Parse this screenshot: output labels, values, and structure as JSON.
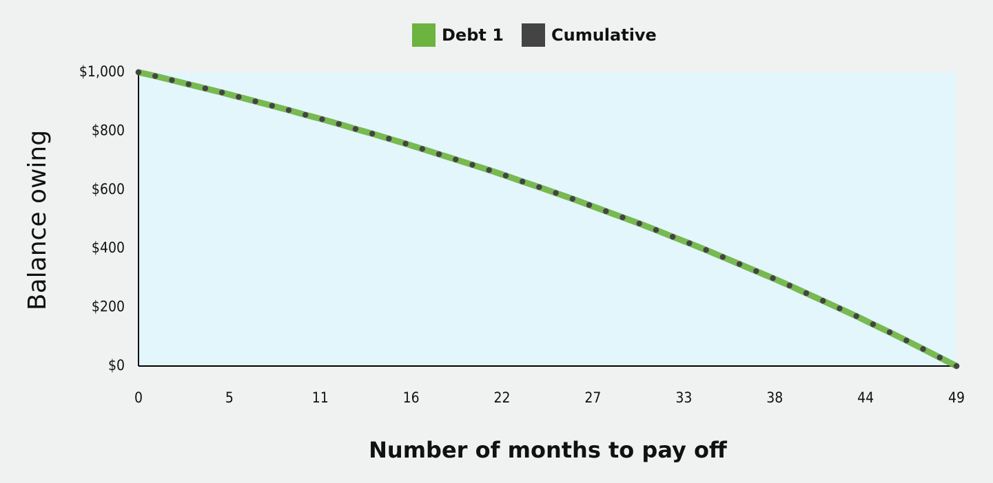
{
  "chart_data": {
    "type": "line",
    "x_label": "Number of months to pay off",
    "y_label": "Balance owing",
    "x": [
      0,
      1,
      2,
      3,
      4,
      5,
      6,
      7,
      8,
      9,
      10,
      11,
      12,
      13,
      14,
      15,
      16,
      17,
      18,
      19,
      20,
      21,
      22,
      23,
      24,
      25,
      26,
      27,
      28,
      29,
      30,
      31,
      32,
      33,
      34,
      35,
      36,
      37,
      38,
      39,
      40,
      41,
      42,
      43,
      44,
      45,
      46,
      47,
      48,
      49
    ],
    "series": [
      {
        "name": "Debt 1",
        "color": "#6cb33f",
        "values": [
          1000,
          987,
          973,
          959,
          945,
          931,
          916,
          901,
          886,
          871,
          855,
          840,
          824,
          807,
          791,
          774,
          757,
          739,
          721,
          703,
          685,
          667,
          648,
          628,
          609,
          589,
          569,
          548,
          527,
          506,
          485,
          463,
          440,
          418,
          395,
          371,
          347,
          323,
          299,
          274,
          248,
          222,
          196,
          170,
          142,
          115,
          87,
          58,
          29,
          0
        ]
      },
      {
        "name": "Cumulative",
        "color": "#444444",
        "values": [
          1000,
          987,
          973,
          959,
          945,
          931,
          916,
          901,
          886,
          871,
          855,
          840,
          824,
          807,
          791,
          774,
          757,
          739,
          721,
          703,
          685,
          667,
          648,
          628,
          609,
          589,
          569,
          548,
          527,
          506,
          485,
          463,
          440,
          418,
          395,
          371,
          347,
          323,
          299,
          274,
          248,
          222,
          196,
          170,
          142,
          115,
          87,
          58,
          29,
          0
        ]
      }
    ],
    "xlim": [
      0,
      49
    ],
    "xticks": [
      0,
      {
        "value": 5.444,
        "label": "5"
      },
      {
        "value": 10.889,
        "label": "11"
      },
      {
        "value": 16.333,
        "label": "16"
      },
      {
        "value": 21.778,
        "label": "22"
      },
      {
        "value": 27.222,
        "label": "27"
      },
      {
        "value": 32.667,
        "label": "33"
      },
      {
        "value": 38.111,
        "label": "38"
      },
      {
        "value": 43.556,
        "label": "44"
      },
      49
    ],
    "ylim": [
      0,
      1000
    ],
    "yticks": [
      {
        "value": 0,
        "label": "$0"
      },
      {
        "value": 200,
        "label": "$200"
      },
      {
        "value": 400,
        "label": "$400"
      },
      {
        "value": 600,
        "label": "$600"
      },
      {
        "value": 800,
        "label": "$800"
      },
      {
        "value": 1000,
        "label": "$1,000"
      }
    ],
    "legend": "top"
  }
}
